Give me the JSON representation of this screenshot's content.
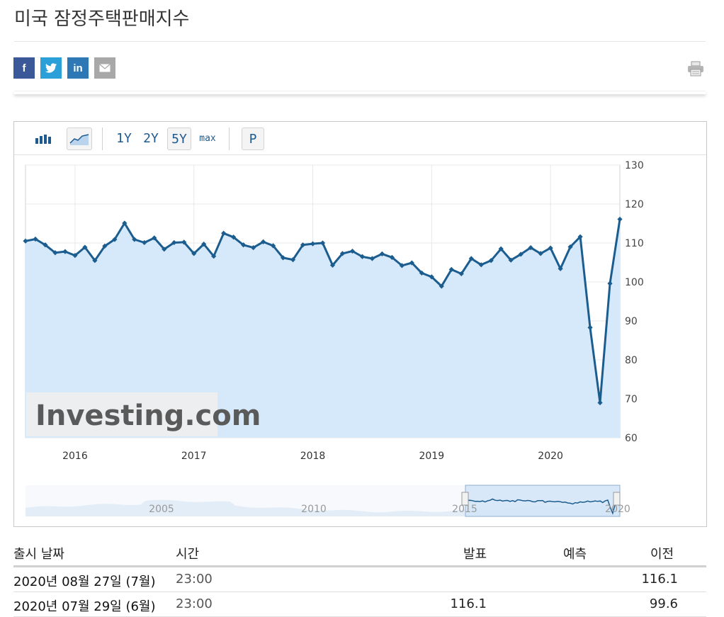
{
  "page": {
    "title": "미국 잠정주택판매지수"
  },
  "share": {
    "buttons": [
      {
        "name": "facebook",
        "glyph": "f",
        "color": "#3b5998"
      },
      {
        "name": "twitter",
        "glyph": "t",
        "color": "#2a9fd8"
      },
      {
        "name": "linkedin",
        "glyph": "in",
        "color": "#2e78b5"
      },
      {
        "name": "email",
        "glyph": "✉",
        "color": "#a8a8a8"
      }
    ]
  },
  "toolbar": {
    "range_1y": "1Y",
    "range_2y": "2Y",
    "range_5y": "5Y",
    "range_max": "max",
    "p_label": "P",
    "selected": "5Y"
  },
  "chart_data": {
    "type": "area",
    "y_ticks": [
      "130",
      "120",
      "110",
      "100",
      "90",
      "80",
      "70",
      "60"
    ],
    "ylim": [
      60,
      130
    ],
    "x_tick_labels": [
      "2016",
      "2017",
      "2018",
      "2019",
      "2020"
    ],
    "watermark": "Investing.com",
    "grid": true,
    "series": [
      {
        "values": [
          110.5,
          111.0,
          109.5,
          107.5,
          107.8,
          106.8,
          108.9,
          105.5,
          109.2,
          110.9,
          115.1,
          110.9,
          110.1,
          111.3,
          108.4,
          110.1,
          110.2,
          107.3,
          109.7,
          106.6,
          112.5,
          111.5,
          109.5,
          108.8,
          110.3,
          109.3,
          106.2,
          105.7,
          109.5,
          109.8,
          110.0,
          104.3,
          107.3,
          107.9,
          106.5,
          106.0,
          107.2,
          106.3,
          104.2,
          104.9,
          102.3,
          101.3,
          98.9,
          103.2,
          102.1,
          106.0,
          104.4,
          105.5,
          108.5,
          105.6,
          107.1,
          108.8,
          107.3,
          108.7,
          103.4,
          109.0,
          111.6,
          88.3,
          69.0,
          99.6,
          116.1
        ]
      }
    ],
    "navigator": {
      "x_tick_labels": [
        "2005",
        "2010",
        "2015",
        "2020"
      ]
    }
  },
  "table": {
    "headers": {
      "release_date": "출시 날짜",
      "time": "시간",
      "actual": "발표",
      "forecast": "예측",
      "previous": "이전"
    },
    "rows": [
      {
        "release_date": "2020년 08월 27일 (7월)",
        "time": "23:00",
        "actual": "",
        "forecast": "",
        "previous": "116.1"
      },
      {
        "release_date": "2020년 07월 29일 (6월)",
        "time": "23:00",
        "actual": "116.1",
        "forecast": "",
        "previous": "99.6"
      }
    ]
  }
}
